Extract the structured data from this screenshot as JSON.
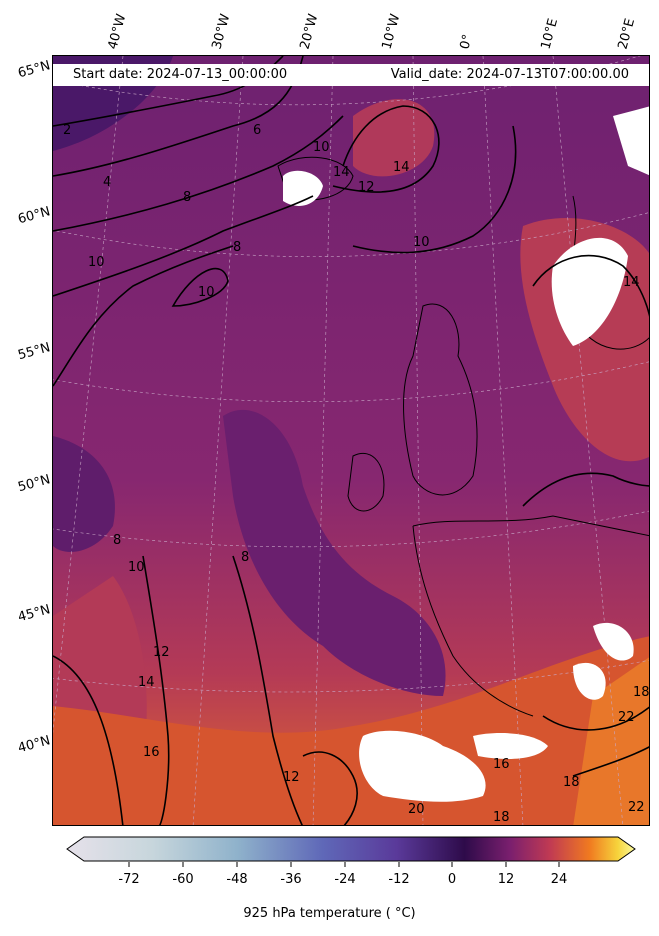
{
  "header": {
    "start_date": "Start date: 2024-07-13_00:00:00",
    "valid_date": "Valid_date: 2024-07-13T07:00:00.00"
  },
  "longitude_labels": [
    "40°W",
    "30°W",
    "20°W",
    "10°W",
    "0°",
    "10°E",
    "20°E"
  ],
  "latitude_labels": [
    "65°N",
    "60°N",
    "55°N",
    "50°N",
    "45°N",
    "40°N"
  ],
  "contour_labels": [
    "2",
    "4",
    "6",
    "8",
    "10",
    "12",
    "14",
    "16",
    "18",
    "20",
    "22"
  ],
  "colorbar": {
    "label": "925 hPa temperature ($^\\circ$C)",
    "label_display": "925 hPa temperature ( °C)",
    "ticks": [
      "-72",
      "-60",
      "-48",
      "-36",
      "-24",
      "-12",
      "0",
      "12",
      "24"
    ],
    "range": [
      -84,
      36
    ],
    "colormap": "inferno-like (light grey-blue → blue → purple → dark purple at 0 → red → orange → yellow)"
  },
  "colors": {
    "cool_interior": "#6a2070",
    "mid": "#8e2a72",
    "warm": "#c0404d",
    "hot": "#e0622c",
    "land_mask": "#ffffff"
  }
}
